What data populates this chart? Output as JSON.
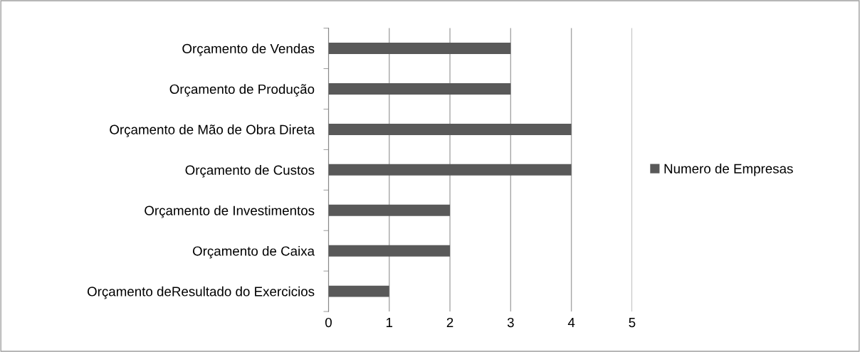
{
  "chart_data": {
    "type": "bar",
    "orientation": "horizontal",
    "categories": [
      "Orçamento de Vendas",
      "Orçamento de Produção",
      "Orçamento de Mão de Obra Direta",
      "Orçamento de Custos",
      "Orçamento de Investimentos",
      "Orçamento de Caixa",
      "Orçamento deResultado do Exercicios"
    ],
    "series": [
      {
        "name": "Numero de Empresas",
        "color": "#595959",
        "values": [
          3,
          3,
          4,
          4,
          2,
          2,
          1
        ]
      }
    ],
    "xlim": [
      0,
      5
    ],
    "xticks": [
      0,
      1,
      2,
      3,
      4,
      5
    ],
    "grid": "x",
    "legend": "right"
  }
}
